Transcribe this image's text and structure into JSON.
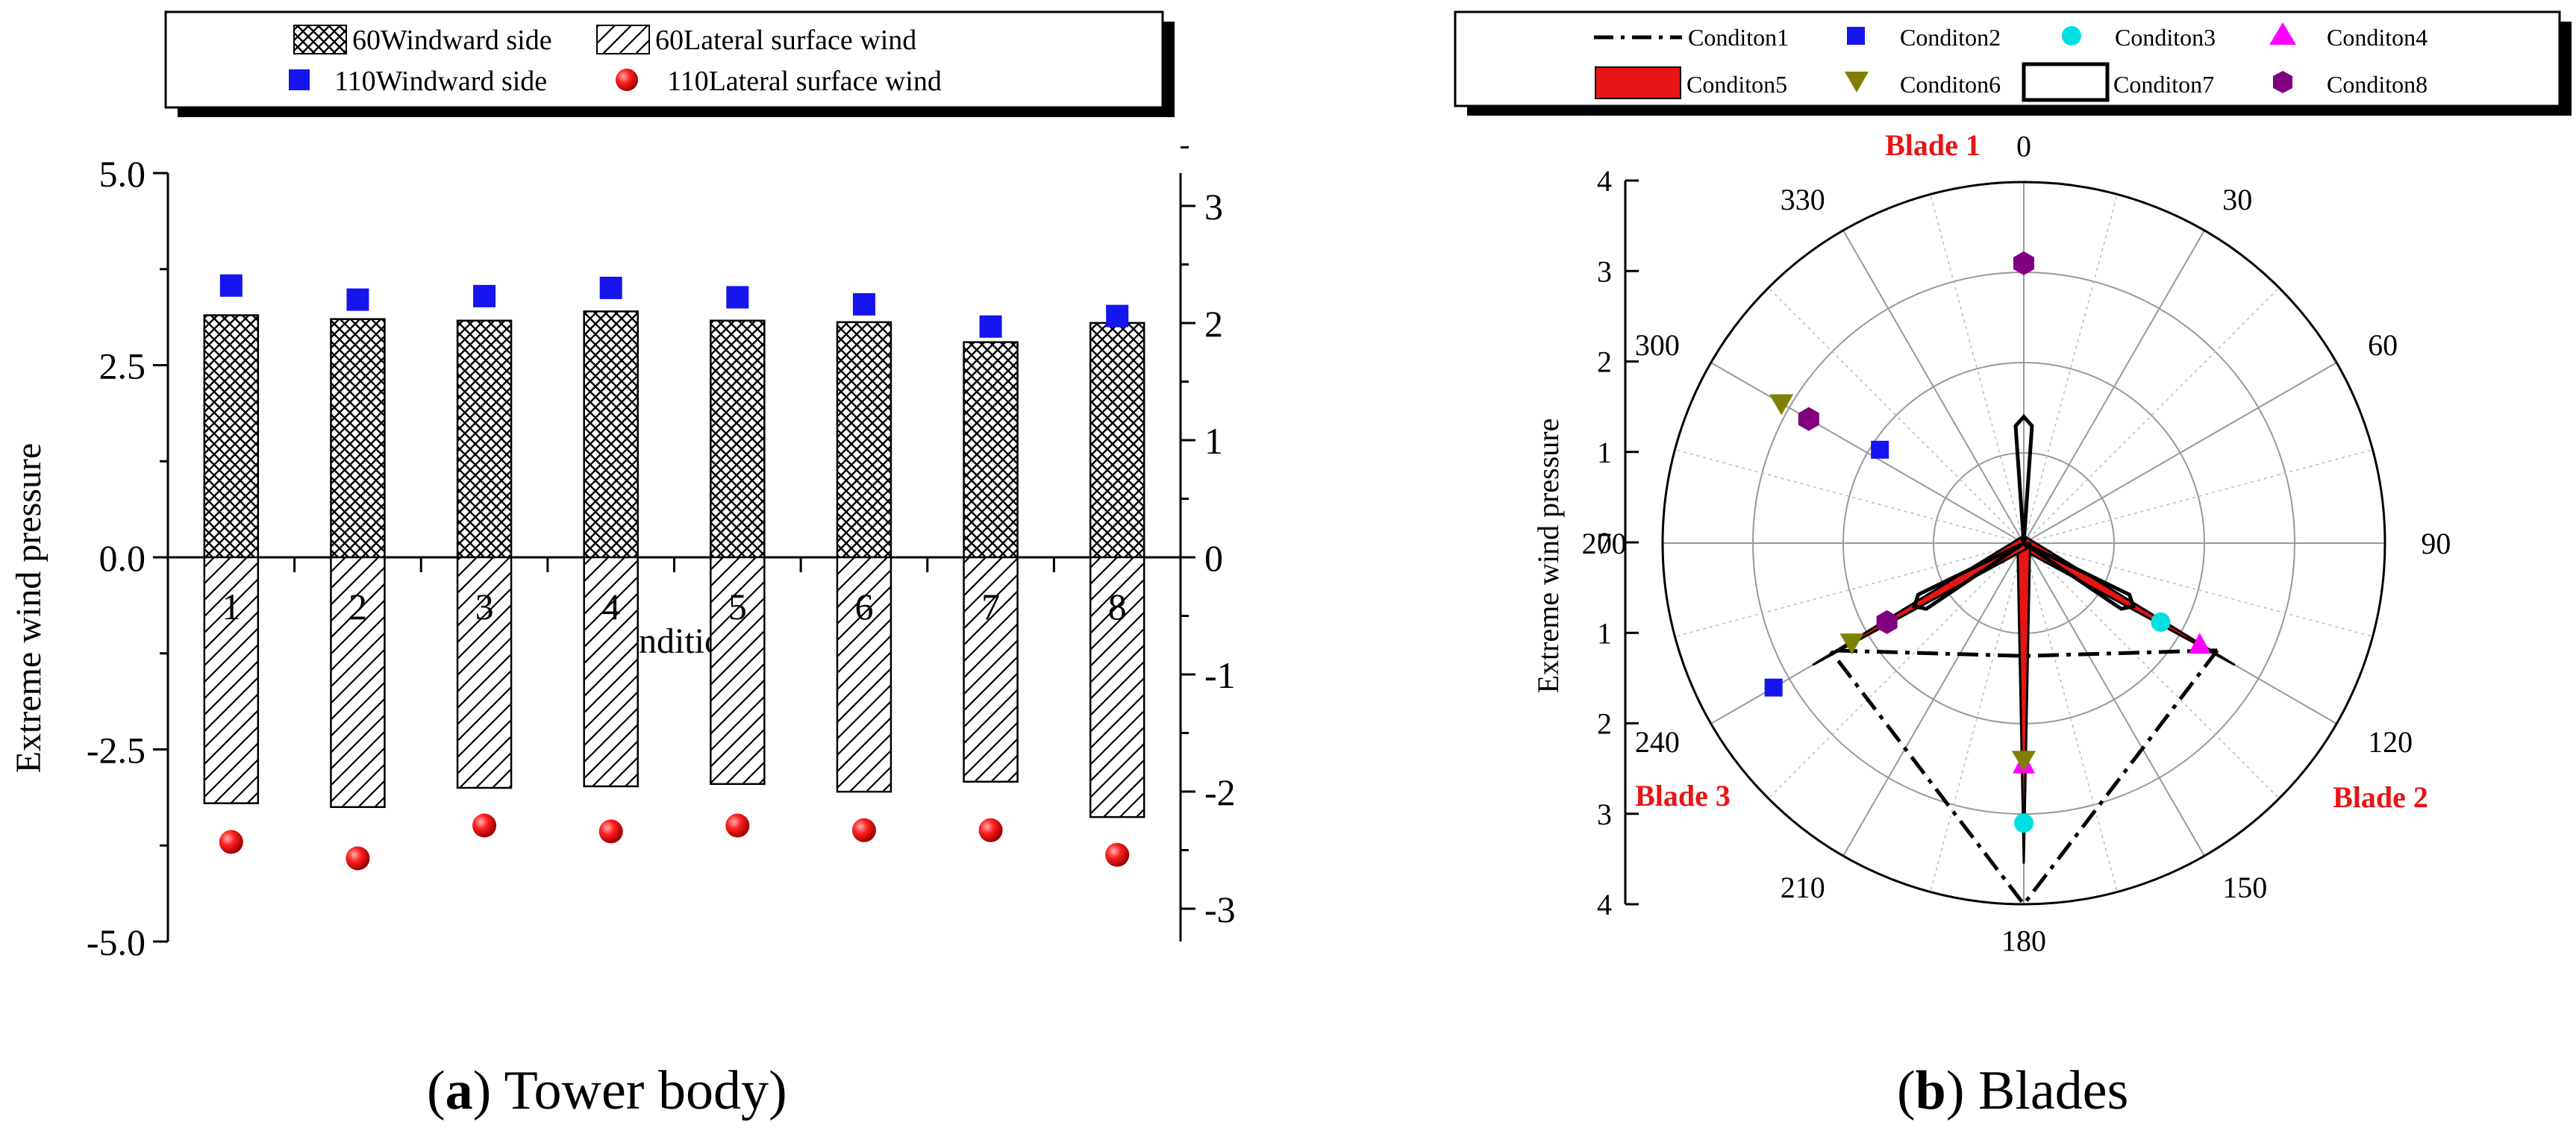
{
  "chart_data": [
    {
      "type": "bar",
      "panel": "a",
      "ylabel": "Extreme wind pressure",
      "xlabel": "Condition",
      "ylim": [
        -5.0,
        5.0
      ],
      "y2lim": [
        -3,
        3.5
      ],
      "y_ticks": [
        "5.0",
        "2.5",
        "0.0",
        "-2.5",
        "-5.0"
      ],
      "y2_ticks": [
        "3",
        "2",
        "1",
        "0",
        "-1",
        "-2",
        "-3"
      ],
      "categories": [
        "1",
        "2",
        "3",
        "4",
        "5",
        "6",
        "7",
        "8"
      ],
      "series": [
        {
          "name": "60Windward side",
          "axis": "left",
          "kind": "bar",
          "fill": "crosshatch",
          "values": [
            3.15,
            3.1,
            3.08,
            3.2,
            3.08,
            3.06,
            2.8,
            3.05
          ]
        },
        {
          "name": "60Lateral surface wind",
          "axis": "left",
          "kind": "bar",
          "fill": "diagonal",
          "values": [
            -3.2,
            -3.25,
            -3.0,
            -2.98,
            -2.95,
            -3.05,
            -2.92,
            -3.38
          ]
        },
        {
          "name": "110Windward side",
          "axis": "right",
          "kind": "marker",
          "color": "#1515f0",
          "values": [
            2.32,
            2.2,
            2.23,
            2.3,
            2.22,
            2.16,
            1.97,
            2.06
          ]
        },
        {
          "name": "110Lateral surface wind",
          "axis": "right",
          "kind": "marker",
          "color": "#ee1111",
          "values": [
            -2.43,
            -2.57,
            -2.29,
            -2.34,
            -2.29,
            -2.33,
            -2.33,
            -2.54
          ]
        }
      ],
      "legend": "top",
      "grid": false
    },
    {
      "type": "polar",
      "panel": "b",
      "rlabel": "Extreme wind pressure",
      "rlim": [
        0,
        4
      ],
      "r_ticks": [
        "4",
        "3",
        "2",
        "1",
        "0",
        "1",
        "2",
        "3",
        "4"
      ],
      "theta_ticks": [
        "0",
        "30",
        "60",
        "90",
        "120",
        "150",
        "180",
        "210",
        "240",
        "270",
        "300",
        "330"
      ],
      "annotations": [
        "Blade 1",
        "Blade 2",
        "Blade 3"
      ],
      "accent_color": "#e81515",
      "legend": "top",
      "grid": true,
      "series": [
        {
          "name": "Conditon1",
          "style": "dash-dot-line",
          "color": "#000000",
          "points": [
            {
              "theta": 119,
              "r": 2.45
            },
            {
              "theta": 180,
              "r": 4.0
            },
            {
              "theta": 241,
              "r": 2.45
            },
            {
              "theta": 180,
              "r": 1.25
            },
            {
              "theta": 119,
              "r": 2.45
            }
          ]
        },
        {
          "name": "Conditon2",
          "style": "square",
          "color": "#1515f0",
          "points": [
            {
              "theta": 303,
              "r": 1.9
            },
            {
              "theta": 240,
              "r": 3.2
            }
          ]
        },
        {
          "name": "Conditon3",
          "style": "circle",
          "color": "#00e0e0",
          "points": [
            {
              "theta": 120,
              "r": 1.75
            },
            {
              "theta": 180,
              "r": 3.1
            }
          ]
        },
        {
          "name": "Conditon4",
          "style": "triangle-up",
          "color": "#ff00ff",
          "points": [
            {
              "theta": 120,
              "r": 2.25
            },
            {
              "theta": 180,
              "r": 2.45
            }
          ]
        },
        {
          "name": "Conditon5",
          "style": "red-filled-polygon",
          "color": "#e81515",
          "points": [
            {
              "theta": 0,
              "r": 0.0
            },
            {
              "theta": 120,
              "r": 2.7
            },
            {
              "theta": 180,
              "r": 3.55
            },
            {
              "theta": 240,
              "r": 2.7
            }
          ]
        },
        {
          "name": "Conditon6",
          "style": "triangle-down",
          "color": "#808000",
          "points": [
            {
              "theta": 300,
              "r": 3.1
            },
            {
              "theta": 240,
              "r": 2.2
            },
            {
              "theta": 180,
              "r": 2.4
            }
          ]
        },
        {
          "name": "Conditon7",
          "style": "open-outline",
          "color": "#000000",
          "points": [
            {
              "theta": 0,
              "r": 1.4
            },
            {
              "theta": 120,
              "r": 1.4
            },
            {
              "theta": 240,
              "r": 1.4
            }
          ]
        },
        {
          "name": "Conditon8",
          "style": "hexagon",
          "color": "#800080",
          "points": [
            {
              "theta": 0,
              "r": 3.1
            },
            {
              "theta": 300,
              "r": 2.75
            },
            {
              "theta": 240,
              "r": 1.75
            }
          ]
        }
      ]
    }
  ],
  "captions": {
    "a_label": "a",
    "a_text": " Tower body",
    "b_label": "b",
    "b_text": " Blades"
  }
}
